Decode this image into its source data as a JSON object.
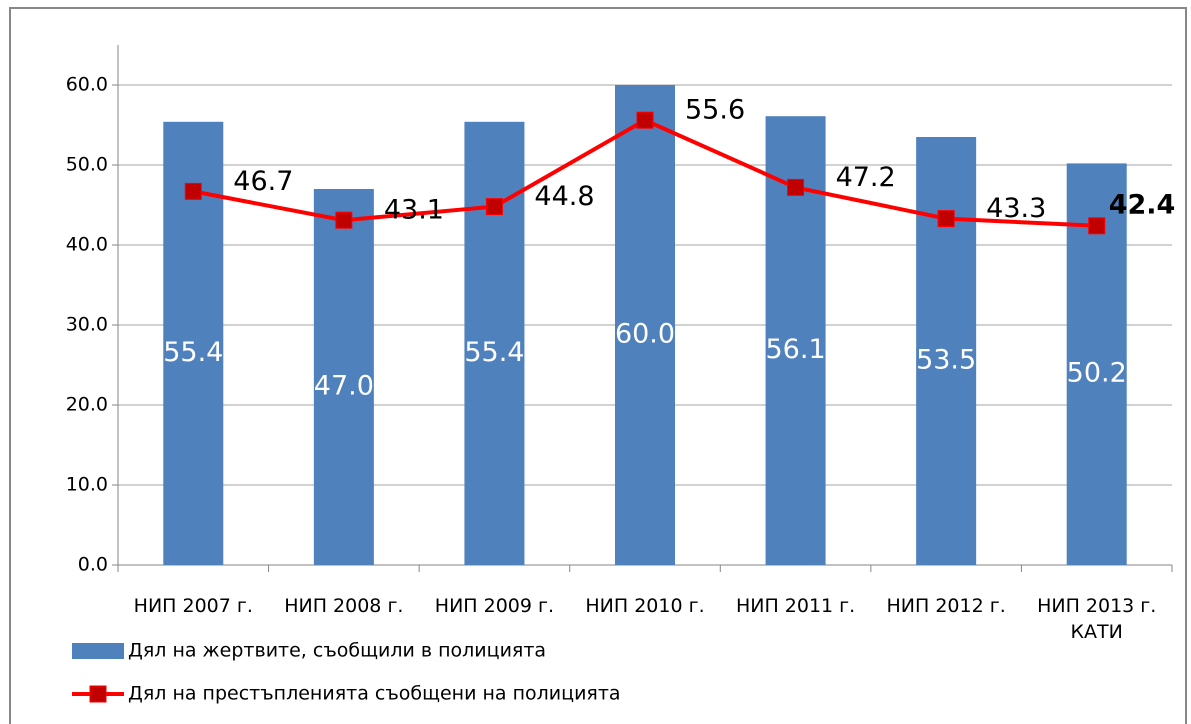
{
  "chart_data": {
    "type": "bar",
    "categories": [
      "НИП 2007 г.",
      "НИП 2008 г.",
      "НИП 2009 г.",
      "НИП 2010  г.",
      "НИП 2011  г.",
      "НИП 2012  г.",
      "НИП 2013 г.\nКАТИ"
    ],
    "series": [
      {
        "name": "Дял на жертвите, съобщили в полицията",
        "type": "bar",
        "color": "#4f81bd",
        "values": [
          55.4,
          47,
          55.4,
          60,
          56.1,
          53.5,
          50.2
        ],
        "value_labels": [
          "55.4",
          "47.0",
          "55.4",
          "60.0",
          "56.1",
          "53.5",
          "50.2"
        ]
      },
      {
        "name": "Дял на престъпленията съобщени на полицията",
        "type": "line",
        "color": "#ff0000",
        "marker_color": "#c00000",
        "values": [
          46.7,
          43.1,
          44.8,
          55.6,
          47.2,
          43.3,
          42.4
        ]
      }
    ],
    "ylim": [
      0,
      60
    ],
    "yticks": [
      {
        "value": 0,
        "label": "0.0"
      },
      {
        "value": 10,
        "label": "10.0"
      },
      {
        "value": 20,
        "label": "20.0"
      },
      {
        "value": 30,
        "label": "30.0"
      },
      {
        "value": 40,
        "label": "40.0"
      },
      {
        "value": 50,
        "label": "50.0"
      },
      {
        "value": 60,
        "label": "60.0"
      }
    ],
    "grid": true,
    "legend": "bottom-left"
  }
}
